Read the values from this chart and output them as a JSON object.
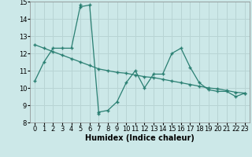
{
  "line1_x": [
    0,
    1,
    2,
    3,
    4,
    5,
    5,
    6,
    7,
    7,
    8,
    9,
    10,
    11,
    12,
    13,
    14,
    15,
    16,
    17,
    18,
    19,
    20,
    21,
    22,
    23
  ],
  "line1_y": [
    10.4,
    11.5,
    12.3,
    12.3,
    12.3,
    14.8,
    14.7,
    14.8,
    8.5,
    8.6,
    8.7,
    9.2,
    10.3,
    11.0,
    10.0,
    10.8,
    10.8,
    12.0,
    12.3,
    11.2,
    10.3,
    9.9,
    9.8,
    9.8,
    9.5,
    9.7
  ],
  "line2_x": [
    0,
    1,
    2,
    3,
    4,
    5,
    6,
    7,
    8,
    9,
    10,
    11,
    12,
    13,
    14,
    15,
    16,
    17,
    18,
    19,
    20,
    21,
    22,
    23
  ],
  "line2_y": [
    12.5,
    12.3,
    12.1,
    11.9,
    11.7,
    11.5,
    11.3,
    11.1,
    11.0,
    10.9,
    10.85,
    10.75,
    10.65,
    10.6,
    10.5,
    10.4,
    10.3,
    10.2,
    10.1,
    10.0,
    9.95,
    9.85,
    9.75,
    9.7
  ],
  "line_color": "#2a7f72",
  "bg_color": "#cce8e8",
  "grid_color": "#b8d4d4",
  "xlabel": "Humidex (Indice chaleur)",
  "ylim": [
    8,
    15
  ],
  "xlim": [
    -0.5,
    23.5
  ],
  "yticks": [
    8,
    9,
    10,
    11,
    12,
    13,
    14,
    15
  ],
  "xticks": [
    0,
    1,
    2,
    3,
    4,
    5,
    6,
    7,
    8,
    9,
    10,
    11,
    12,
    13,
    14,
    15,
    16,
    17,
    18,
    19,
    20,
    21,
    22,
    23
  ],
  "xlabel_fontsize": 7,
  "tick_fontsize": 6
}
